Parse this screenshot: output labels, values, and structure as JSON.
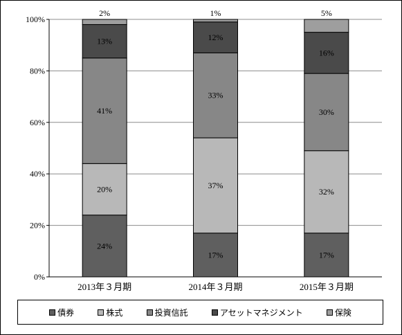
{
  "chart_data": {
    "type": "bar",
    "stacked": true,
    "percent": true,
    "categories": [
      "2013年３月期",
      "2014年３月期",
      "2015年３月期"
    ],
    "series": [
      {
        "name": "債券",
        "values": [
          24,
          17,
          17
        ],
        "color": "#5f5f5f"
      },
      {
        "name": "株式",
        "values": [
          20,
          37,
          32
        ],
        "color": "#b8b8b8"
      },
      {
        "name": "投資信託",
        "values": [
          41,
          33,
          30
        ],
        "color": "#878787"
      },
      {
        "name": "アセットマネジメント",
        "values": [
          13,
          12,
          16
        ],
        "color": "#4a4a4a"
      },
      {
        "name": "保険",
        "values": [
          2,
          1,
          5
        ],
        "color": "#9e9e9e"
      }
    ],
    "data_labels": [
      [
        "24%",
        "20%",
        "41%",
        "13%",
        "2%"
      ],
      [
        "17%",
        "37%",
        "33%",
        "12%",
        "1%"
      ],
      [
        "17%",
        "32%",
        "30%",
        "16%",
        "5%"
      ]
    ],
    "yticks": [
      "0%",
      "20%",
      "40%",
      "60%",
      "80%",
      "100%"
    ],
    "ylim": [
      0,
      100
    ],
    "grid": true,
    "legend_position": "bottom"
  }
}
